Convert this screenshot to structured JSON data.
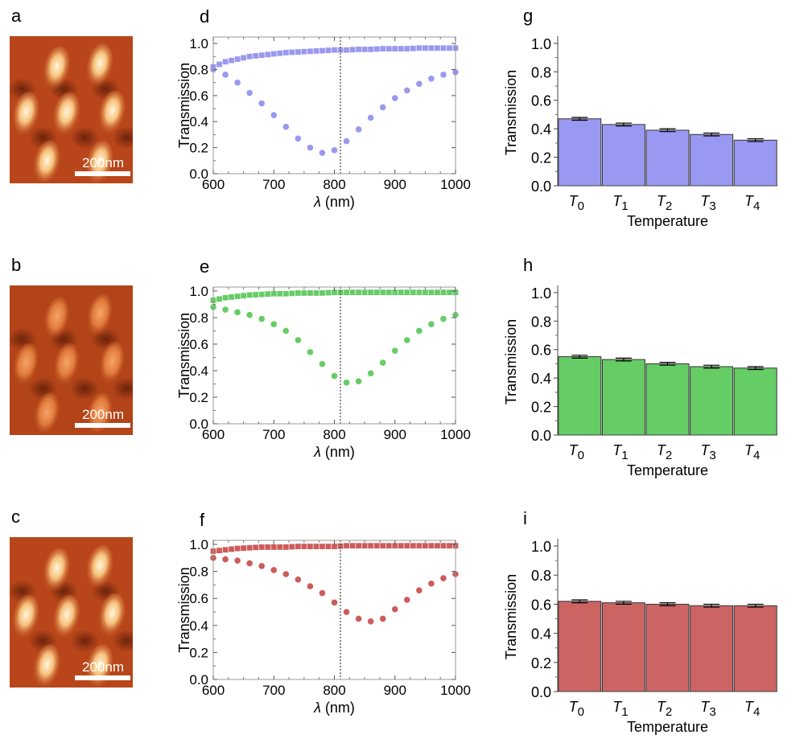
{
  "afm_panels": [
    {
      "label": "a",
      "scale_label": "200nm",
      "palette": "orange-bright"
    },
    {
      "label": "b",
      "scale_label": "200nm",
      "palette": "orange-soft"
    },
    {
      "label": "c",
      "scale_label": "200nm",
      "palette": "orange-bright"
    }
  ],
  "chart_data": [
    {
      "panel": "d",
      "type": "scatter",
      "color": "#9999ee",
      "xlabel_symbol": "λ",
      "xlabel_unit": " (nm)",
      "ylabel": "Transmission",
      "xlim": [
        600,
        1000
      ],
      "ylim": [
        0,
        1.05
      ],
      "xticks": [
        600,
        700,
        800,
        900,
        1000
      ],
      "yticks": [
        0.0,
        0.2,
        0.4,
        0.6,
        0.8,
        1.0
      ],
      "vline": 810,
      "series": [
        {
          "name": "upper",
          "marker": "square",
          "x": [
            600,
            620,
            640,
            660,
            680,
            700,
            720,
            740,
            760,
            780,
            800,
            820,
            840,
            860,
            880,
            900,
            920,
            940,
            960,
            980,
            1000
          ],
          "y": [
            0.82,
            0.86,
            0.88,
            0.9,
            0.91,
            0.92,
            0.93,
            0.935,
            0.94,
            0.945,
            0.95,
            0.95,
            0.955,
            0.955,
            0.96,
            0.96,
            0.96,
            0.965,
            0.965,
            0.965,
            0.965
          ]
        },
        {
          "name": "lower",
          "marker": "circle",
          "x": [
            600,
            620,
            640,
            660,
            680,
            700,
            720,
            740,
            760,
            780,
            800,
            820,
            840,
            860,
            880,
            900,
            920,
            940,
            960,
            980,
            1000
          ],
          "y": [
            0.8,
            0.76,
            0.7,
            0.62,
            0.54,
            0.45,
            0.36,
            0.27,
            0.2,
            0.16,
            0.18,
            0.25,
            0.34,
            0.43,
            0.51,
            0.58,
            0.64,
            0.69,
            0.73,
            0.76,
            0.78
          ]
        }
      ]
    },
    {
      "panel": "e",
      "type": "scatter",
      "color": "#66cc66",
      "xlabel_symbol": "λ",
      "xlabel_unit": " (nm)",
      "ylabel": "Transmission",
      "xlim": [
        600,
        1000
      ],
      "ylim": [
        0,
        1.03
      ],
      "xticks": [
        600,
        700,
        800,
        900,
        1000
      ],
      "yticks": [
        0.0,
        0.2,
        0.4,
        0.6,
        0.8,
        1.0
      ],
      "vline": 810,
      "series": [
        {
          "name": "upper",
          "marker": "square",
          "x": [
            600,
            620,
            640,
            660,
            680,
            700,
            720,
            740,
            760,
            780,
            800,
            820,
            840,
            860,
            880,
            900,
            920,
            940,
            960,
            980,
            1000
          ],
          "y": [
            0.93,
            0.95,
            0.96,
            0.97,
            0.975,
            0.98,
            0.98,
            0.985,
            0.985,
            0.985,
            0.99,
            0.99,
            0.99,
            0.99,
            0.99,
            0.99,
            0.99,
            0.99,
            0.99,
            0.99,
            0.99
          ]
        },
        {
          "name": "lower",
          "marker": "circle",
          "x": [
            600,
            620,
            640,
            660,
            680,
            700,
            720,
            740,
            760,
            780,
            800,
            820,
            840,
            860,
            880,
            900,
            920,
            940,
            960,
            980,
            1000
          ],
          "y": [
            0.88,
            0.86,
            0.84,
            0.82,
            0.79,
            0.75,
            0.7,
            0.63,
            0.54,
            0.45,
            0.36,
            0.31,
            0.32,
            0.38,
            0.46,
            0.55,
            0.63,
            0.7,
            0.75,
            0.79,
            0.82
          ]
        }
      ]
    },
    {
      "panel": "f",
      "type": "scatter",
      "color": "#cc5c5c",
      "xlabel_symbol": "λ",
      "xlabel_unit": " (nm)",
      "ylabel": "Transmission",
      "xlim": [
        600,
        1000
      ],
      "ylim": [
        0,
        1.03
      ],
      "xticks": [
        600,
        700,
        800,
        900,
        1000
      ],
      "yticks": [
        0.0,
        0.2,
        0.4,
        0.6,
        0.8,
        1.0
      ],
      "vline": 810,
      "series": [
        {
          "name": "upper",
          "marker": "square",
          "x": [
            600,
            620,
            640,
            660,
            680,
            700,
            720,
            740,
            760,
            780,
            800,
            820,
            840,
            860,
            880,
            900,
            920,
            940,
            960,
            980,
            1000
          ],
          "y": [
            0.95,
            0.96,
            0.97,
            0.975,
            0.98,
            0.98,
            0.98,
            0.985,
            0.985,
            0.985,
            0.985,
            0.99,
            0.99,
            0.99,
            0.99,
            0.99,
            0.99,
            0.99,
            0.99,
            0.99,
            0.99
          ]
        },
        {
          "name": "lower",
          "marker": "circle",
          "x": [
            600,
            620,
            640,
            660,
            680,
            700,
            720,
            740,
            760,
            780,
            800,
            820,
            840,
            860,
            880,
            900,
            920,
            940,
            960,
            980,
            1000
          ],
          "y": [
            0.9,
            0.89,
            0.88,
            0.86,
            0.84,
            0.81,
            0.78,
            0.74,
            0.69,
            0.64,
            0.57,
            0.5,
            0.45,
            0.43,
            0.45,
            0.52,
            0.59,
            0.66,
            0.71,
            0.75,
            0.78
          ]
        }
      ]
    },
    {
      "panel": "g",
      "type": "bar",
      "color": "#9999f2",
      "categories": [
        "0",
        "1",
        "2",
        "3",
        "4"
      ],
      "category_symbol": "T",
      "values": [
        0.47,
        0.43,
        0.39,
        0.36,
        0.32
      ],
      "errors": [
        0.01,
        0.01,
        0.01,
        0.01,
        0.01
      ],
      "xlabel": "Temperature",
      "ylabel": "Transmission",
      "ylim": [
        0,
        1.05
      ],
      "yticks": [
        0.0,
        0.2,
        0.4,
        0.6,
        0.8,
        1.0
      ]
    },
    {
      "panel": "h",
      "type": "bar",
      "color": "#66cc66",
      "categories": [
        "0",
        "1",
        "2",
        "3",
        "4"
      ],
      "category_symbol": "T",
      "values": [
        0.55,
        0.53,
        0.5,
        0.48,
        0.47
      ],
      "errors": [
        0.01,
        0.01,
        0.01,
        0.01,
        0.01
      ],
      "xlabel": "Temperature",
      "ylabel": "Transmission",
      "ylim": [
        0,
        1.05
      ],
      "yticks": [
        0.0,
        0.2,
        0.4,
        0.6,
        0.8,
        1.0
      ]
    },
    {
      "panel": "i",
      "type": "bar",
      "color": "#cc6464",
      "categories": [
        "0",
        "1",
        "2",
        "3",
        "4"
      ],
      "category_symbol": "T",
      "values": [
        0.62,
        0.61,
        0.6,
        0.59,
        0.59
      ],
      "errors": [
        0.01,
        0.01,
        0.01,
        0.01,
        0.01
      ],
      "xlabel": "Temperature",
      "ylabel": "Transmission",
      "ylim": [
        0,
        1.05
      ],
      "yticks": [
        0.0,
        0.2,
        0.4,
        0.6,
        0.8,
        1.0
      ]
    }
  ]
}
